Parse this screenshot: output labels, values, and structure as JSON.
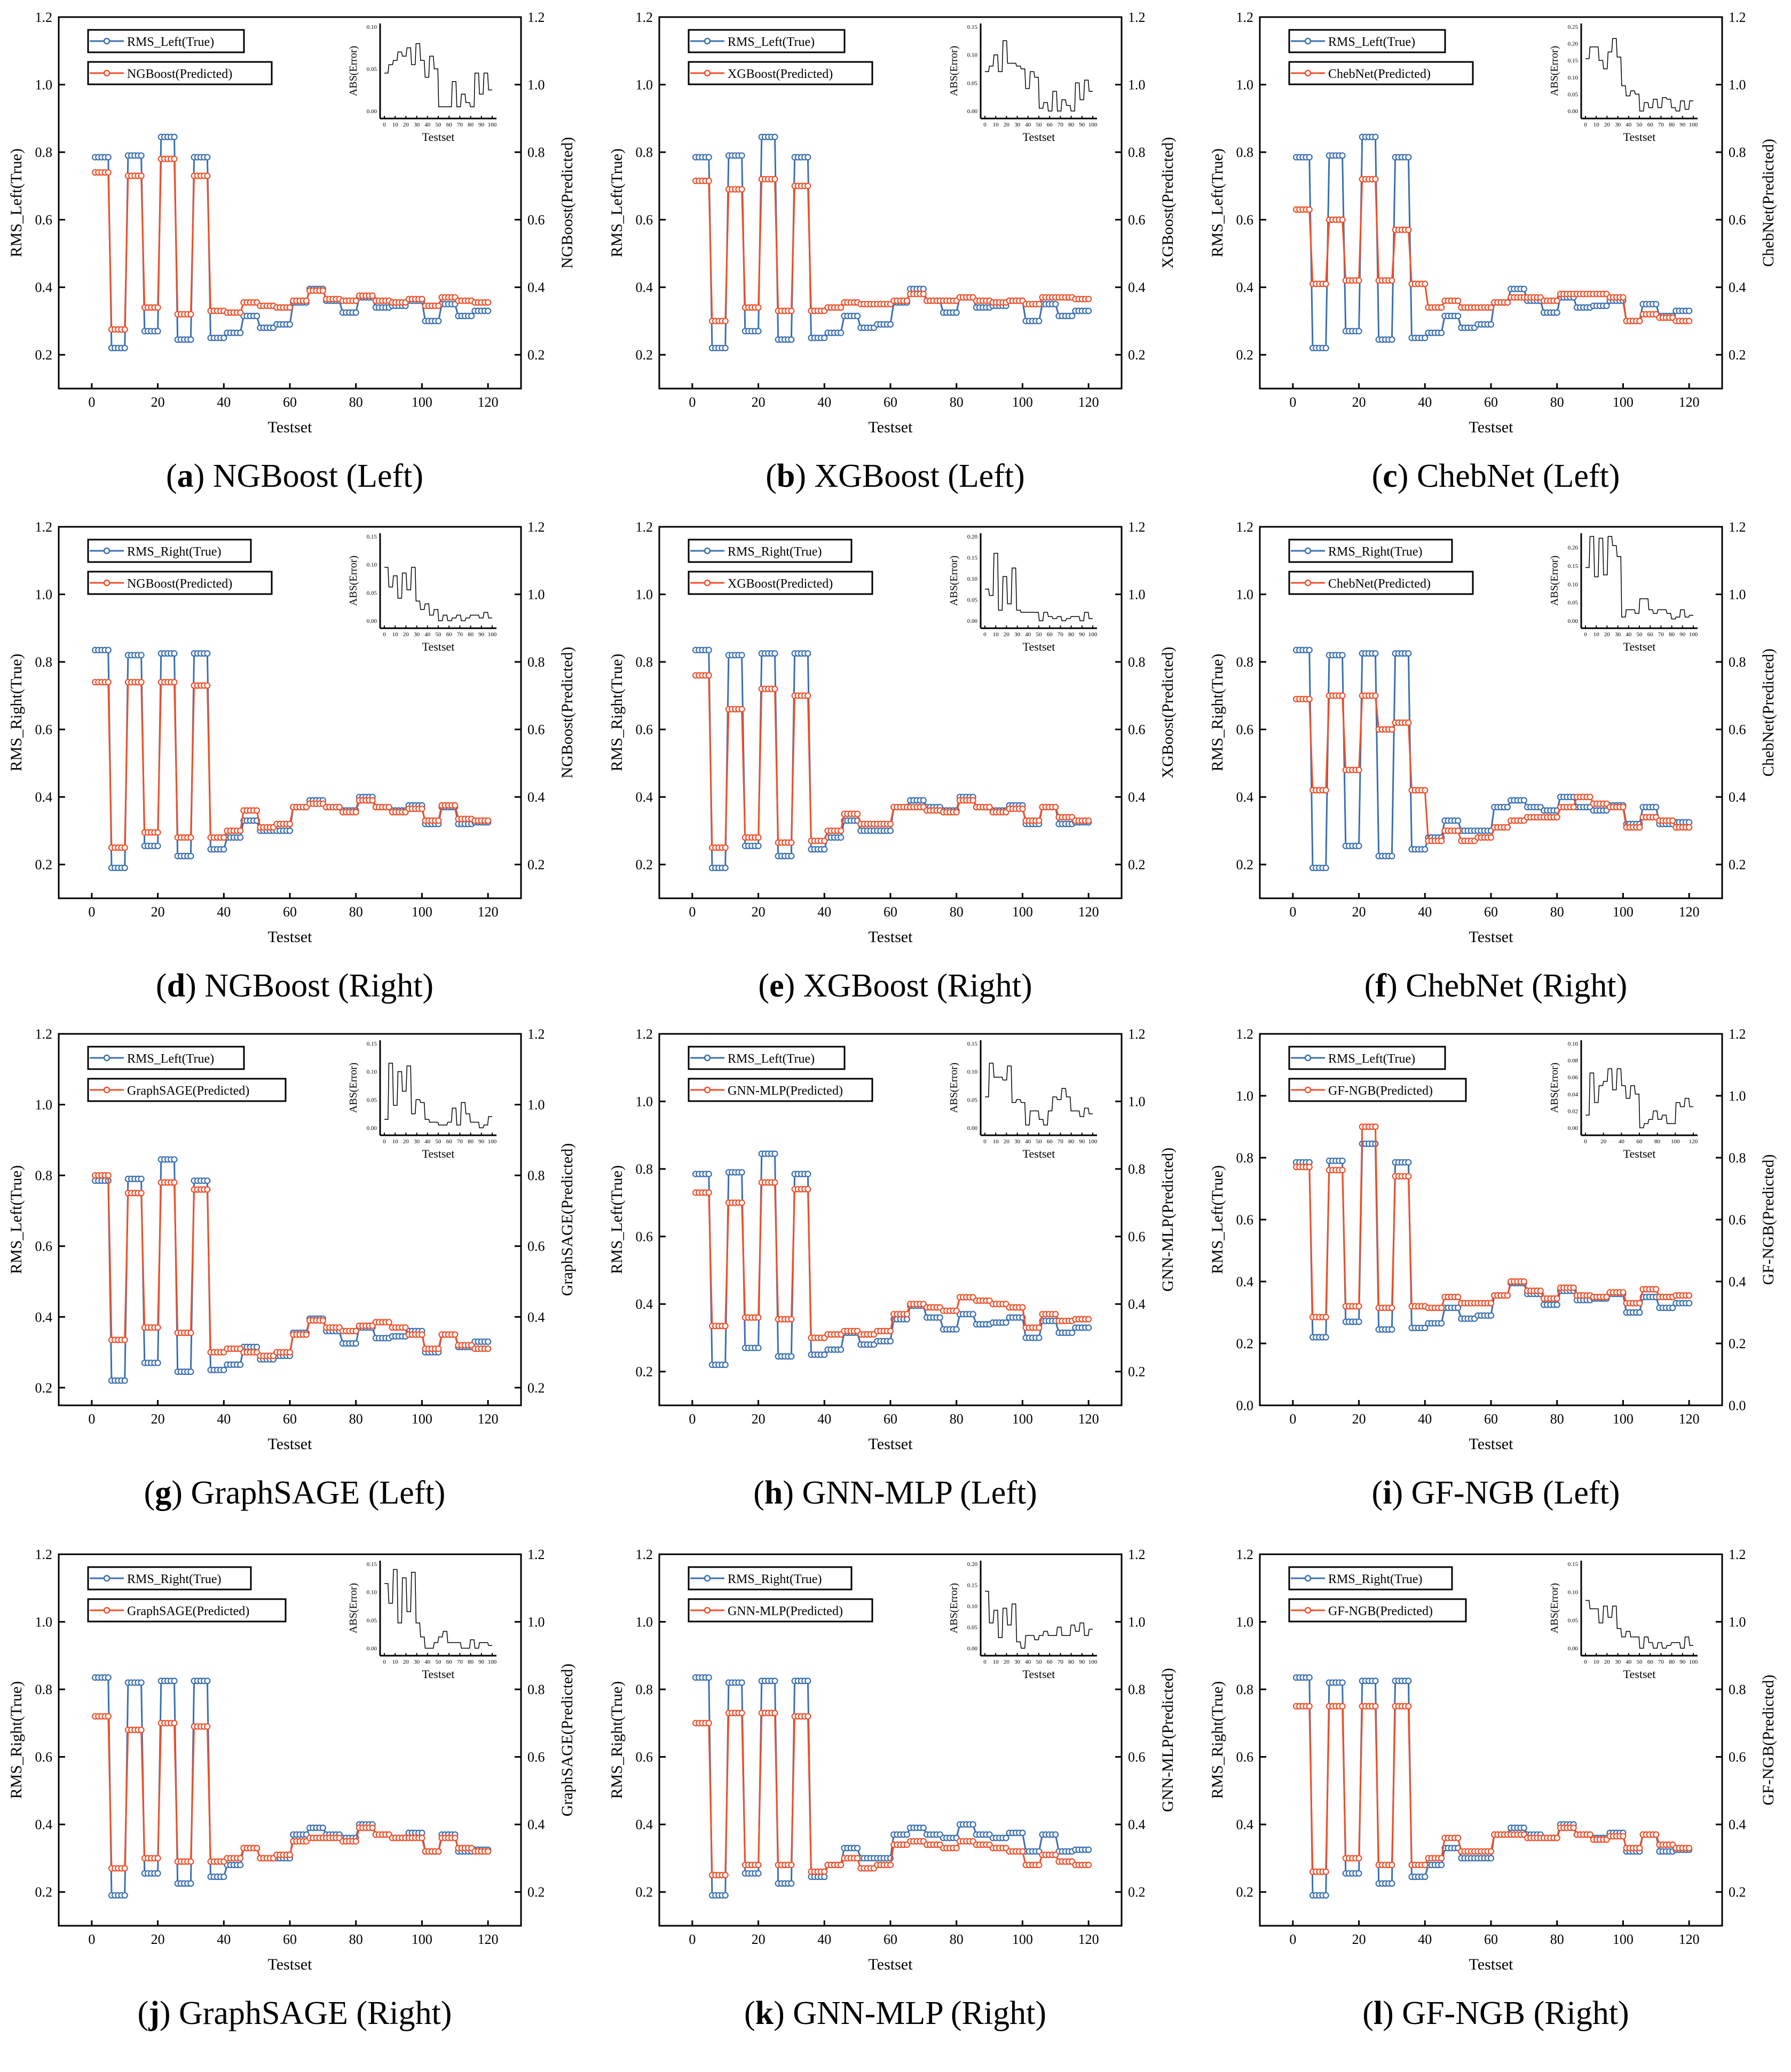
{
  "chart_data": {
    "type": "line",
    "xlabel": "Testset",
    "x_ticks": [
      0,
      20,
      40,
      60,
      80,
      100,
      120
    ],
    "xlim": [
      -10,
      130
    ],
    "block_size": 5,
    "colors": {
      "true": "#3a6fb0",
      "predicted": "#f0502a",
      "error": "#000000"
    },
    "true_left_blocks": [
      0.785,
      0.22,
      0.79,
      0.27,
      0.845,
      0.245,
      0.785,
      0.25,
      0.265,
      0.315,
      0.28,
      0.29,
      0.355,
      0.395,
      0.36,
      0.325,
      0.37,
      0.34,
      0.345,
      0.36,
      0.3,
      0.35,
      0.315,
      0.33
    ],
    "true_right_blocks": [
      0.835,
      0.19,
      0.82,
      0.255,
      0.825,
      0.225,
      0.825,
      0.245,
      0.28,
      0.33,
      0.3,
      0.3,
      0.37,
      0.39,
      0.37,
      0.36,
      0.4,
      0.37,
      0.36,
      0.375,
      0.32,
      0.37,
      0.32,
      0.325
    ],
    "panels": [
      {
        "letter": "a",
        "title": "NGBoost (Left)",
        "side": "left",
        "true_label": "RMS_Left(True)",
        "pred_label": "NGBoost(Predicted)",
        "ylabel": "RMS_Left(True)",
        "ylabel_right": "NGBoost(Predicted)",
        "ylim": [
          0.1,
          1.2
        ],
        "y_ticks": [
          0.2,
          0.4,
          0.6,
          0.8,
          1.0,
          1.2
        ],
        "inset_ylim": [
          0,
          0.1
        ],
        "inset_y_ticks": [
          0.0,
          0.05,
          0.1
        ],
        "inset_x_ticks": [
          0,
          10,
          20,
          30,
          40,
          50,
          60,
          70,
          80,
          90,
          100
        ],
        "inset_xlabel": "Testset",
        "inset_ylabel": "ABS(Error)",
        "pred_blocks": [
          0.74,
          0.275,
          0.73,
          0.34,
          0.78,
          0.32,
          0.73,
          0.33,
          0.325,
          0.355,
          0.345,
          0.34,
          0.36,
          0.39,
          0.365,
          0.36,
          0.375,
          0.36,
          0.355,
          0.365,
          0.345,
          0.37,
          0.36,
          0.355
        ]
      },
      {
        "letter": "b",
        "title": "XGBoost (Left)",
        "side": "left",
        "true_label": "RMS_Left(True)",
        "pred_label": "XGBoost(Predicted)",
        "ylabel": "RMS_Left(True)",
        "ylabel_right": "XGBoost(Predicted)",
        "ylim": [
          0.1,
          1.2
        ],
        "y_ticks": [
          0.2,
          0.4,
          0.6,
          0.8,
          1.0,
          1.2
        ],
        "inset_ylim": [
          0,
          0.15
        ],
        "inset_y_ticks": [
          0.0,
          0.05,
          0.1,
          0.15
        ],
        "inset_x_ticks": [
          0,
          10,
          20,
          30,
          40,
          50,
          60,
          70,
          80,
          90,
          100
        ],
        "inset_xlabel": "Testset",
        "inset_ylabel": "ABS(Error)",
        "pred_blocks": [
          0.715,
          0.3,
          0.69,
          0.34,
          0.72,
          0.33,
          0.7,
          0.33,
          0.34,
          0.355,
          0.35,
          0.35,
          0.36,
          0.38,
          0.36,
          0.36,
          0.37,
          0.36,
          0.355,
          0.36,
          0.35,
          0.37,
          0.37,
          0.365
        ]
      },
      {
        "letter": "c",
        "title": "ChebNet (Left)",
        "side": "left",
        "true_label": "RMS_Left(True)",
        "pred_label": "ChebNet(Predicted)",
        "ylabel": "RMS_Left(True)",
        "ylabel_right": "ChebNet(Predicted)",
        "ylim": [
          0.1,
          1.2
        ],
        "y_ticks": [
          0.2,
          0.4,
          0.6,
          0.8,
          1.0,
          1.2
        ],
        "inset_ylim": [
          0,
          0.25
        ],
        "inset_y_ticks": [
          0.0,
          0.05,
          0.1,
          0.15,
          0.2,
          0.25
        ],
        "inset_x_ticks": [
          0,
          10,
          20,
          30,
          40,
          50,
          60,
          70,
          80,
          90,
          100
        ],
        "inset_xlabel": "Testset",
        "inset_ylabel": "ABS(Error)",
        "pred_blocks": [
          0.63,
          0.41,
          0.6,
          0.42,
          0.72,
          0.42,
          0.57,
          0.41,
          0.34,
          0.36,
          0.34,
          0.34,
          0.355,
          0.37,
          0.37,
          0.36,
          0.38,
          0.38,
          0.38,
          0.37,
          0.3,
          0.32,
          0.31,
          0.3
        ]
      },
      {
        "letter": "d",
        "title": "NGBoost (Right)",
        "side": "right",
        "true_label": "RMS_Right(True)",
        "pred_label": "NGBoost(Predicted)",
        "ylabel": "RMS_Right(True)",
        "ylabel_right": "NGBoost(Predicted)",
        "ylim": [
          0.1,
          1.2
        ],
        "y_ticks": [
          0.2,
          0.4,
          0.6,
          0.8,
          1.0,
          1.2
        ],
        "inset_ylim": [
          0,
          0.15
        ],
        "inset_y_ticks": [
          0.0,
          0.05,
          0.1,
          0.15
        ],
        "inset_x_ticks": [
          0,
          10,
          20,
          30,
          40,
          50,
          60,
          70,
          80,
          90,
          100
        ],
        "inset_xlabel": "Testset",
        "inset_ylabel": "ABS(Error)",
        "pred_blocks": [
          0.74,
          0.25,
          0.74,
          0.295,
          0.74,
          0.28,
          0.73,
          0.28,
          0.3,
          0.36,
          0.31,
          0.32,
          0.37,
          0.38,
          0.37,
          0.355,
          0.39,
          0.37,
          0.355,
          0.365,
          0.33,
          0.375,
          0.335,
          0.33
        ]
      },
      {
        "letter": "e",
        "title": "XGBoost (Right)",
        "side": "right",
        "true_label": "RMS_Right(True)",
        "pred_label": "XGBoost(Predicted)",
        "ylabel": "RMS_Right(True)",
        "ylabel_right": "XGBoost(Predicted)",
        "ylim": [
          0.1,
          1.2
        ],
        "y_ticks": [
          0.2,
          0.4,
          0.6,
          0.8,
          1.0,
          1.2
        ],
        "inset_ylim": [
          0,
          0.2
        ],
        "inset_y_ticks": [
          0.0,
          0.05,
          0.1,
          0.15,
          0.2
        ],
        "inset_x_ticks": [
          0,
          10,
          20,
          30,
          40,
          50,
          60,
          70,
          80,
          90,
          100
        ],
        "inset_xlabel": "Testset",
        "inset_ylabel": "ABS(Error)",
        "pred_blocks": [
          0.76,
          0.25,
          0.66,
          0.28,
          0.72,
          0.265,
          0.7,
          0.27,
          0.3,
          0.35,
          0.32,
          0.32,
          0.37,
          0.37,
          0.36,
          0.355,
          0.39,
          0.37,
          0.355,
          0.365,
          0.33,
          0.37,
          0.34,
          0.33
        ]
      },
      {
        "letter": "f",
        "title": "ChebNet (Right)",
        "side": "right",
        "true_label": "RMS_Right(True)",
        "pred_label": "ChebNet(Predicted)",
        "ylabel": "RMS_Right(True)",
        "ylabel_right": "ChebNet(Predicted)",
        "ylim": [
          0.1,
          1.2
        ],
        "y_ticks": [
          0.2,
          0.4,
          0.6,
          0.8,
          1.0,
          1.2
        ],
        "inset_ylim": [
          0,
          0.23
        ],
        "inset_y_ticks": [
          0.0,
          0.05,
          0.1,
          0.15,
          0.2
        ],
        "inset_x_ticks": [
          0,
          10,
          20,
          30,
          40,
          50,
          60,
          70,
          80,
          90,
          100
        ],
        "inset_xlabel": "Testset",
        "inset_ylabel": "ABS(Error)",
        "pred_blocks": [
          0.69,
          0.42,
          0.7,
          0.48,
          0.7,
          0.6,
          0.62,
          0.42,
          0.27,
          0.3,
          0.27,
          0.28,
          0.31,
          0.33,
          0.34,
          0.34,
          0.37,
          0.4,
          0.38,
          0.37,
          0.31,
          0.34,
          0.33,
          0.31
        ]
      },
      {
        "letter": "g",
        "title": "GraphSAGE (Left)",
        "side": "left",
        "true_label": "RMS_Left(True)",
        "pred_label": "GraphSAGE(Predicted)",
        "ylabel": "RMS_Left(True)",
        "ylabel_right": "GraphSAGE(Predicted)",
        "ylim": [
          0.15,
          1.2
        ],
        "y_ticks": [
          0.2,
          0.4,
          0.6,
          0.8,
          1.0,
          1.2
        ],
        "inset_ylim": [
          0,
          0.15
        ],
        "inset_y_ticks": [
          0.0,
          0.05,
          0.1,
          0.15
        ],
        "inset_x_ticks": [
          0,
          10,
          20,
          30,
          40,
          50,
          60,
          70,
          80,
          90,
          100
        ],
        "inset_xlabel": "Testset",
        "inset_ylabel": "ABS(Error)",
        "pred_blocks": [
          0.8,
          0.335,
          0.75,
          0.37,
          0.78,
          0.355,
          0.76,
          0.3,
          0.31,
          0.3,
          0.29,
          0.3,
          0.35,
          0.39,
          0.37,
          0.36,
          0.375,
          0.385,
          0.37,
          0.35,
          0.31,
          0.35,
          0.32,
          0.31
        ]
      },
      {
        "letter": "h",
        "title": "GNN-MLP (Left)",
        "side": "left",
        "true_label": "RMS_Left(True)",
        "pred_label": "GNN-MLP(Predicted)",
        "ylabel": "RMS_Left(True)",
        "ylabel_right": "GNN-MLP(Predicted)",
        "ylim": [
          0.1,
          1.2
        ],
        "y_ticks": [
          0.2,
          0.4,
          0.6,
          0.8,
          1.0,
          1.2
        ],
        "inset_ylim": [
          0,
          0.15
        ],
        "inset_y_ticks": [
          0.0,
          0.05,
          0.1,
          0.15
        ],
        "inset_x_ticks": [
          0,
          10,
          20,
          30,
          40,
          50,
          60,
          70,
          80,
          90,
          100
        ],
        "inset_xlabel": "Testset",
        "inset_ylabel": "ABS(Error)",
        "pred_blocks": [
          0.73,
          0.335,
          0.7,
          0.36,
          0.76,
          0.355,
          0.74,
          0.3,
          0.31,
          0.32,
          0.31,
          0.32,
          0.37,
          0.4,
          0.39,
          0.38,
          0.42,
          0.41,
          0.4,
          0.39,
          0.33,
          0.37,
          0.35,
          0.355
        ]
      },
      {
        "letter": "i",
        "title": "GF-NGB (Left)",
        "side": "left",
        "true_label": "RMS_Left(True)",
        "pred_label": "GF-NGB(Predicted)",
        "ylabel": "RMS_Left(True)",
        "ylabel_right": "GF-NGB(Predicted)",
        "ylim": [
          0.0,
          1.2
        ],
        "y_ticks": [
          0.0,
          0.2,
          0.4,
          0.6,
          0.8,
          1.0,
          1.2
        ],
        "inset_ylim": [
          0,
          0.1
        ],
        "inset_y_ticks": [
          0.0,
          0.02,
          0.04,
          0.06,
          0.08,
          0.1
        ],
        "inset_x_ticks": [
          0,
          20,
          40,
          60,
          80,
          100,
          120
        ],
        "inset_xlabel": "Testset",
        "inset_ylabel": "ABS(Error)",
        "pred_blocks": [
          0.77,
          0.285,
          0.76,
          0.32,
          0.9,
          0.315,
          0.74,
          0.32,
          0.315,
          0.35,
          0.33,
          0.33,
          0.355,
          0.4,
          0.37,
          0.345,
          0.38,
          0.355,
          0.35,
          0.365,
          0.33,
          0.375,
          0.35,
          0.355
        ]
      },
      {
        "letter": "j",
        "title": "GraphSAGE (Right)",
        "side": "right",
        "true_label": "RMS_Right(True)",
        "pred_label": "GraphSAGE(Predicted)",
        "ylabel": "RMS_Right(True)",
        "ylabel_right": "GraphSAGE(Predicted)",
        "ylim": [
          0.1,
          1.2
        ],
        "y_ticks": [
          0.2,
          0.4,
          0.6,
          0.8,
          1.0,
          1.2
        ],
        "inset_ylim": [
          0,
          0.15
        ],
        "inset_y_ticks": [
          0.0,
          0.05,
          0.1,
          0.15
        ],
        "inset_x_ticks": [
          0,
          10,
          20,
          30,
          40,
          50,
          60,
          70,
          80,
          90,
          100
        ],
        "inset_xlabel": "Testset",
        "inset_ylabel": "ABS(Error)",
        "pred_blocks": [
          0.72,
          0.27,
          0.68,
          0.3,
          0.7,
          0.29,
          0.69,
          0.29,
          0.3,
          0.33,
          0.3,
          0.31,
          0.35,
          0.36,
          0.36,
          0.35,
          0.39,
          0.37,
          0.36,
          0.36,
          0.32,
          0.36,
          0.33,
          0.32
        ]
      },
      {
        "letter": "k",
        "title": "GNN-MLP (Right)",
        "side": "right",
        "true_label": "RMS_Right(True)",
        "pred_label": "GNN-MLP(Predicted)",
        "ylabel": "RMS_Right(True)",
        "ylabel_right": "GNN-MLP(Predicted)",
        "ylim": [
          0.1,
          1.2
        ],
        "y_ticks": [
          0.2,
          0.4,
          0.6,
          0.8,
          1.0,
          1.2
        ],
        "inset_ylim": [
          0,
          0.2
        ],
        "inset_y_ticks": [
          0.0,
          0.05,
          0.1,
          0.15,
          0.2
        ],
        "inset_x_ticks": [
          0,
          10,
          20,
          30,
          40,
          50,
          60,
          70,
          80,
          90,
          100
        ],
        "inset_xlabel": "Testset",
        "inset_ylabel": "ABS(Error)",
        "pred_blocks": [
          0.7,
          0.25,
          0.73,
          0.28,
          0.73,
          0.28,
          0.72,
          0.26,
          0.28,
          0.3,
          0.27,
          0.28,
          0.34,
          0.35,
          0.34,
          0.33,
          0.35,
          0.34,
          0.33,
          0.32,
          0.28,
          0.31,
          0.29,
          0.28
        ]
      },
      {
        "letter": "l",
        "title": "GF-NGB (Right)",
        "side": "right",
        "true_label": "RMS_Right(True)",
        "pred_label": "GF-NGB(Predicted)",
        "ylabel": "RMS_Right(True)",
        "ylabel_right": "GF-NGB(Predicted)",
        "ylim": [
          0.1,
          1.2
        ],
        "y_ticks": [
          0.2,
          0.4,
          0.6,
          0.8,
          1.0,
          1.2
        ],
        "inset_ylim": [
          0,
          0.15
        ],
        "inset_y_ticks": [
          0.0,
          0.05,
          0.1,
          0.15
        ],
        "inset_x_ticks": [
          0,
          10,
          20,
          30,
          40,
          50,
          60,
          70,
          80,
          90,
          100
        ],
        "inset_xlabel": "Testset",
        "inset_ylabel": "ABS(Error)",
        "pred_blocks": [
          0.75,
          0.26,
          0.75,
          0.3,
          0.75,
          0.28,
          0.75,
          0.28,
          0.3,
          0.36,
          0.32,
          0.32,
          0.37,
          0.37,
          0.36,
          0.36,
          0.39,
          0.37,
          0.355,
          0.365,
          0.33,
          0.37,
          0.34,
          0.33
        ]
      }
    ]
  }
}
